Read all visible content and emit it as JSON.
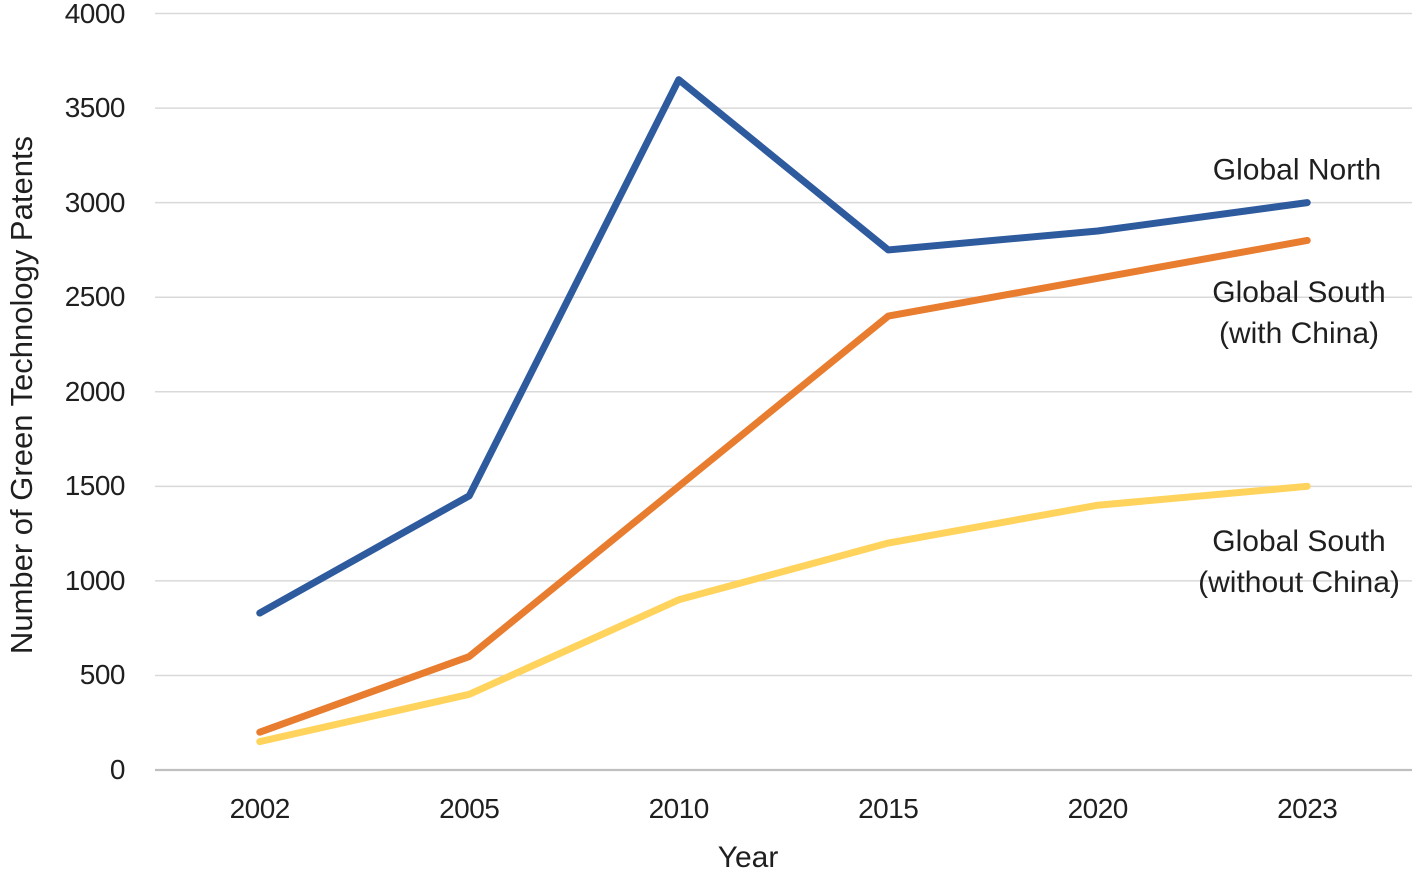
{
  "chart_data": {
    "type": "line",
    "title": "",
    "xlabel": "Year",
    "ylabel": "Number of Green Technology Patents",
    "categories": [
      "2002",
      "2005",
      "2010",
      "2015",
      "2020",
      "2023"
    ],
    "ylim": [
      0,
      4000
    ],
    "y_tick_step": 500,
    "y_tick_labels": [
      "0",
      "500",
      "1000",
      "1500",
      "2000",
      "2500",
      "3000",
      "3500",
      "4000"
    ],
    "grid": "horizontal",
    "legend_position": "inline-right-of-lines",
    "colors": {
      "gridline": "#d9d9d9",
      "axis_line": "#bfbfbf",
      "text": "#1f1f1f"
    },
    "series": [
      {
        "name": "Global North",
        "label_lines": [
          "Global North"
        ],
        "color": "#2E5A9E",
        "values": [
          830,
          1450,
          3650,
          2750,
          2850,
          3000
        ]
      },
      {
        "name": "Global South (with China)",
        "label_lines": [
          "Global South",
          "(with China)"
        ],
        "color": "#E87C2F",
        "values": [
          200,
          600,
          1500,
          2400,
          2600,
          2800
        ]
      },
      {
        "name": "Global South (without China)",
        "label_lines": [
          "Global South",
          "(without China)"
        ],
        "color": "#FFD35C",
        "values": [
          150,
          400,
          900,
          1200,
          1400,
          1500
        ]
      }
    ]
  }
}
